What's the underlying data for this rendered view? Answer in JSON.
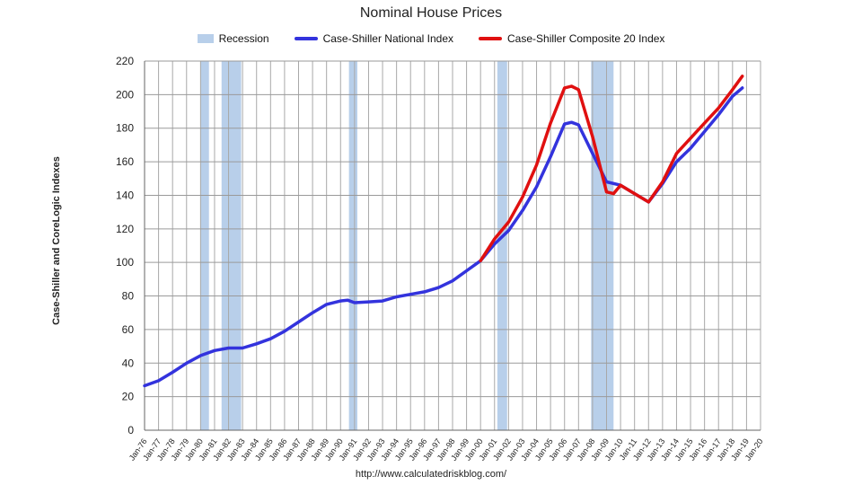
{
  "chart_data": {
    "type": "line",
    "title": "Nominal House Prices",
    "ylabel": "Case-Shiller and CoreLogic Indexes",
    "xlabel": "",
    "ylim": [
      0,
      220
    ],
    "yticks": [
      0,
      20,
      40,
      60,
      80,
      100,
      120,
      140,
      160,
      180,
      200,
      220
    ],
    "xlim": [
      1976,
      2020
    ],
    "xtick_labels": [
      "Jan-76",
      "Jan-77",
      "Jan-78",
      "Jan-79",
      "Jan-80",
      "Jan-81",
      "Jan-82",
      "Jan-83",
      "Jan-84",
      "Jan-85",
      "Jan-86",
      "Jan-87",
      "Jan-88",
      "Jan-89",
      "Jan-90",
      "Jan-91",
      "Jan-92",
      "Jan-93",
      "Jan-94",
      "Jan-95",
      "Jan-96",
      "Jan-97",
      "Jan-98",
      "Jan-99",
      "Jan-00",
      "Jan-01",
      "Jan-02",
      "Jan-03",
      "Jan-04",
      "Jan-05",
      "Jan-06",
      "Jan-07",
      "Jan-08",
      "Jan-09",
      "Jan-10",
      "Jan-11",
      "Jan-12",
      "Jan-13",
      "Jan-14",
      "Jan-15",
      "Jan-16",
      "Jan-17",
      "Jan-18",
      "Jan-19",
      "Jan-20"
    ],
    "grid": true,
    "legend_position": "top",
    "recession_label": "Recession",
    "recessions": [
      [
        1980.0,
        1980.6
      ],
      [
        1981.5,
        1982.9
      ],
      [
        1990.6,
        1991.2
      ],
      [
        2001.2,
        2001.9
      ],
      [
        2007.9,
        2009.5
      ]
    ],
    "series": [
      {
        "name": "Case-Shiller National Index",
        "color": "#3333dd",
        "x": [
          1976.0,
          1977.0,
          1978.0,
          1979.0,
          1980.0,
          1981.0,
          1982.0,
          1983.0,
          1984.0,
          1985.0,
          1986.0,
          1987.0,
          1988.0,
          1989.0,
          1990.0,
          1990.5,
          1991.0,
          1992.0,
          1993.0,
          1994.0,
          1995.0,
          1996.0,
          1997.0,
          1998.0,
          1999.0,
          2000.0,
          2001.0,
          2002.0,
          2003.0,
          2004.0,
          2005.0,
          2006.0,
          2006.5,
          2007.0,
          2008.0,
          2009.0,
          2010.0,
          2011.0,
          2012.0,
          2013.0,
          2014.0,
          2015.0,
          2016.0,
          2017.0,
          2018.0,
          2018.7
        ],
        "values": [
          26.5,
          29.5,
          34.5,
          40,
          44.5,
          47.5,
          49,
          49,
          51.5,
          54.5,
          59,
          64.5,
          70,
          75,
          77,
          77.5,
          76,
          76.5,
          77,
          79.5,
          81,
          82.5,
          85,
          89,
          95,
          101,
          111,
          119,
          131,
          145,
          163,
          182.5,
          183.5,
          182,
          165,
          148,
          146,
          141,
          136,
          147,
          160,
          168,
          178,
          188,
          199,
          204
        ]
      },
      {
        "name": "Case-Shiller Composite 20 Index",
        "color": "#e01010",
        "x": [
          2000.0,
          2001.0,
          2002.0,
          2003.0,
          2004.0,
          2005.0,
          2006.0,
          2006.5,
          2007.0,
          2008.0,
          2009.0,
          2009.5,
          2010.0,
          2011.0,
          2012.0,
          2013.0,
          2014.0,
          2015.0,
          2016.0,
          2017.0,
          2018.0,
          2018.7
        ],
        "values": [
          101,
          114,
          124,
          139,
          158,
          183,
          204,
          205,
          203,
          175,
          142,
          141,
          146,
          141,
          136,
          148,
          165,
          174,
          183,
          192,
          203,
          211
        ]
      }
    ],
    "source": "http://www.calculatedriskblog.com/"
  }
}
